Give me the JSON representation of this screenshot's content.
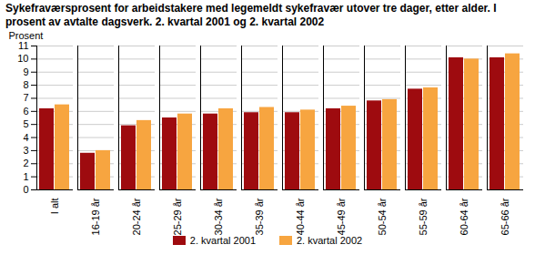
{
  "chart_data": {
    "type": "bar",
    "title": "Sykefraværsprosent for arbeidstakere med legemeldt sykefravær utover tre dager, etter alder. I prosent av avtalte dagsverk. 2. kvartal 2001 og 2. kvartal 2002",
    "y_label": "Prosent",
    "categories": [
      "I alt",
      "16-19 år",
      "20-24 år",
      "25-29 år",
      "30-34 år",
      "35-39 år",
      "40-44 år",
      "45-49 år",
      "50-54 år",
      "55-59 år",
      "60-64 år",
      "65-66 år"
    ],
    "series": [
      {
        "name": "2. kvartal 2001",
        "color": "#9e0b0f",
        "values": [
          6.2,
          2.8,
          4.9,
          5.5,
          5.8,
          5.9,
          5.9,
          6.2,
          6.8,
          7.7,
          10.1,
          10.1
        ]
      },
      {
        "name": "2. kvartal 2002",
        "color": "#f7a540",
        "values": [
          6.5,
          3.0,
          5.3,
          5.8,
          6.2,
          6.3,
          6.1,
          6.4,
          6.9,
          7.8,
          10.0,
          10.4
        ]
      }
    ],
    "ylim": [
      0,
      11
    ],
    "yticks": [
      0,
      1,
      2,
      3,
      4,
      5,
      6,
      7,
      8,
      9,
      10,
      11
    ],
    "grid": true,
    "legend": "bottom"
  }
}
